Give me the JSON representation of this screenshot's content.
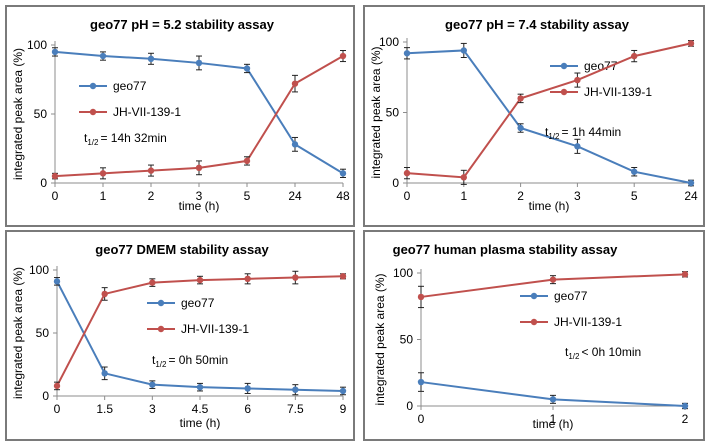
{
  "colors": {
    "geo77": "#4a7ebb",
    "jh": "#c0504d",
    "axis": "#8c8c8c",
    "errbar": "#222222"
  },
  "chart_data": [
    {
      "type": "line",
      "title": "geo77 pH = 5.2 stability assay",
      "xlabel": "time (h)",
      "ylabel": "integrated peak area (%)",
      "categories": [
        "0",
        "1",
        "2",
        "3",
        "5",
        "24",
        "48"
      ],
      "ylim": [
        0,
        100
      ],
      "yticks": [
        "0",
        "50",
        "100"
      ],
      "grid": false,
      "legend_position": "middle-left",
      "series": [
        {
          "name": "geo77",
          "values": [
            95,
            92,
            90,
            87,
            83,
            28,
            7
          ],
          "errors": [
            3,
            3,
            4,
            5,
            3,
            5,
            3
          ]
        },
        {
          "name": "JH-VII-139-1",
          "values": [
            5,
            7,
            9,
            11,
            16,
            72,
            92
          ],
          "errors": [
            2,
            4,
            4,
            5,
            3,
            6,
            4
          ]
        }
      ],
      "annotation": {
        "prefix": "t",
        "subscript": "1/2",
        "text": "= 14h 32min"
      }
    },
    {
      "type": "line",
      "title": "geo77 pH = 7.4 stability assay",
      "xlabel": "time (h)",
      "ylabel": "integrated peak area (%)",
      "categories": [
        "0",
        "1",
        "2",
        "3",
        "5",
        "24"
      ],
      "ylim": [
        0,
        100
      ],
      "yticks": [
        "0",
        "50",
        "100"
      ],
      "grid": false,
      "legend_position": "middle-right",
      "series": [
        {
          "name": "geo77",
          "values": [
            92,
            94,
            39,
            26,
            8,
            0
          ],
          "errors": [
            4,
            5,
            3,
            5,
            3,
            2
          ]
        },
        {
          "name": "JH-VII-139-1",
          "values": [
            7,
            4,
            60,
            73,
            90,
            99
          ],
          "errors": [
            4,
            5,
            3,
            5,
            4,
            2
          ]
        }
      ],
      "annotation": {
        "prefix": "t",
        "subscript": "1/2",
        "text": "= 1h 44min"
      }
    },
    {
      "type": "line",
      "title": "geo77 DMEM stability assay",
      "xlabel": "time (h)",
      "ylabel": "integrated peak area (%)",
      "categories": [
        "0",
        "1.5",
        "3",
        "4.5",
        "6",
        "7.5",
        "9"
      ],
      "ylim": [
        0,
        100
      ],
      "yticks": [
        "0",
        "50",
        "100"
      ],
      "grid": false,
      "legend_position": "middle-right",
      "series": [
        {
          "name": "geo77",
          "values": [
            91,
            18,
            9,
            7,
            6,
            5,
            4
          ],
          "errors": [
            3,
            5,
            3,
            3,
            4,
            4,
            3
          ]
        },
        {
          "name": "JH-VII-139-1",
          "values": [
            8,
            81,
            90,
            92,
            93,
            94,
            95
          ],
          "errors": [
            3,
            5,
            3,
            3,
            4,
            5,
            2
          ]
        }
      ],
      "annotation": {
        "prefix": "t",
        "subscript": "1/2",
        "text": "= 0h 50min"
      }
    },
    {
      "type": "line",
      "title": "geo77 human plasma stability assay",
      "xlabel": "time (h)",
      "ylabel": "integrated peak area (%)",
      "categories": [
        "0",
        "1",
        "2"
      ],
      "ylim": [
        0,
        100
      ],
      "yticks": [
        "0",
        "50",
        "100"
      ],
      "grid": false,
      "legend_position": "middle-right",
      "series": [
        {
          "name": "geo77",
          "values": [
            18,
            5,
            0
          ],
          "errors": [
            7,
            3,
            2
          ]
        },
        {
          "name": "JH-VII-139-1",
          "values": [
            82,
            95,
            99
          ],
          "errors": [
            8,
            3,
            2
          ]
        }
      ],
      "annotation": {
        "prefix": "t",
        "subscript": "1/2",
        "text": "< 0h 10min"
      }
    }
  ]
}
